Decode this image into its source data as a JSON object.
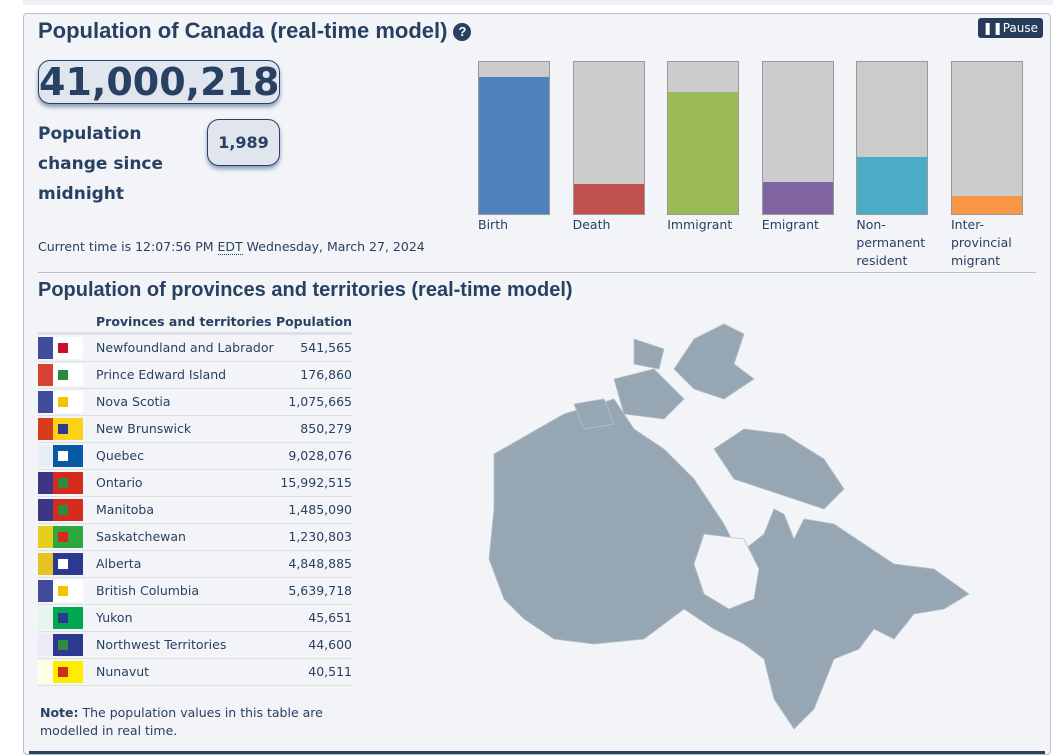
{
  "header": {
    "title": "Population of Canada (real-time model)",
    "help_icon": "question-circle-icon",
    "pause_label": "Pause"
  },
  "population": {
    "total": "41,000,218",
    "change_label": "Population change since midnight",
    "change": "1,989"
  },
  "time": {
    "prefix": "Current time is 12:07:56 PM ",
    "tz": "EDT",
    "suffix": " Wednesday, March 27, 2024"
  },
  "components": [
    {
      "label": "Birth",
      "level": 0.9,
      "color": "#4f81bd"
    },
    {
      "label": "Death",
      "level": 0.2,
      "color": "#c0504d"
    },
    {
      "label": "Immigrant",
      "level": 0.8,
      "color": "#9bbb59"
    },
    {
      "label": "Emigrant",
      "level": 0.21,
      "color": "#8064a2"
    },
    {
      "label": "Non-permanent resident",
      "level": 0.375,
      "color": "#4bacc6"
    },
    {
      "label": "Inter-provincial migrant",
      "level": 0.12,
      "color": "#f79646"
    }
  ],
  "provinces": {
    "title": "Population of provinces and territories (real-time model)",
    "col_name": "Provinces and territories",
    "col_pop": "Population",
    "rows": [
      {
        "name": "Newfoundland and Labrador",
        "pop": "541,565",
        "flag": [
          "#fff",
          "#2b3990",
          "#c8102e"
        ]
      },
      {
        "name": "Prince Edward Island",
        "pop": "176,860",
        "flag": [
          "#fff",
          "#d52b1e",
          "#2e8b3e"
        ]
      },
      {
        "name": "Nova Scotia",
        "pop": "1,075,665",
        "flag": [
          "#fff",
          "#2b3990",
          "#f4c300"
        ]
      },
      {
        "name": "New Brunswick",
        "pop": "850,279",
        "flag": [
          "#fcd116",
          "#d52b1e",
          "#2b3990"
        ]
      },
      {
        "name": "Quebec",
        "pop": "9,028,076",
        "flag": [
          "#095aa5",
          "#fff",
          "#fff"
        ]
      },
      {
        "name": "Ontario",
        "pop": "15,992,515",
        "flag": [
          "#d52b1e",
          "#2b3990",
          "#2e8b3e"
        ]
      },
      {
        "name": "Manitoba",
        "pop": "1,485,090",
        "flag": [
          "#d52b1e",
          "#2b3990",
          "#2e8b3e"
        ]
      },
      {
        "name": "Saskatchewan",
        "pop": "1,230,803",
        "flag": [
          "#2ea83e",
          "#fcd116",
          "#d52b1e"
        ]
      },
      {
        "name": "Alberta",
        "pop": "4,848,885",
        "flag": [
          "#2b3990",
          "#fcd116",
          "#fff"
        ]
      },
      {
        "name": "British Columbia",
        "pop": "5,639,718",
        "flag": [
          "#fff",
          "#2b3990",
          "#f4c300"
        ]
      },
      {
        "name": "Yukon",
        "pop": "45,651",
        "flag": [
          "#00a650",
          "#fff",
          "#2b3990"
        ]
      },
      {
        "name": "Northwest Territories",
        "pop": "44,600",
        "flag": [
          "#2b3990",
          "#fff",
          "#2e8b3e"
        ]
      },
      {
        "name": "Nunavut",
        "pop": "40,511",
        "flag": [
          "#ffed00",
          "#fff",
          "#d52b1e"
        ]
      }
    ],
    "note_bold": "Note:",
    "note": " The population values in this table are modelled in real time."
  },
  "map": {
    "color": "#96a6b2"
  }
}
